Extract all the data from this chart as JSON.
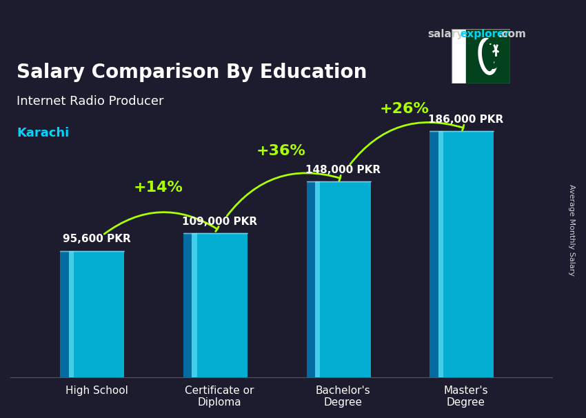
{
  "title": "Salary Comparison By Education",
  "subtitle": "Internet Radio Producer",
  "city": "Karachi",
  "ylabel": "Average Monthly Salary",
  "categories": [
    "High School",
    "Certificate or\nDiploma",
    "Bachelor's\nDegree",
    "Master's\nDegree"
  ],
  "values": [
    95600,
    109000,
    148000,
    186000
  ],
  "value_labels": [
    "95,600 PKR",
    "109,000 PKR",
    "148,000 PKR",
    "186,000 PKR"
  ],
  "pct_labels": [
    "+14%",
    "+36%",
    "+26%"
  ],
  "bar_color_top": "#00d4ff",
  "bar_color_mid": "#00aadd",
  "bar_color_bottom": "#007bb5",
  "bar_color_face": "#00c8f0",
  "title_color": "#ffffff",
  "subtitle_color": "#ffffff",
  "city_color": "#00d4ff",
  "value_label_color": "#ffffff",
  "pct_color": "#aaff00",
  "background_color": "#1a1a2e",
  "brand_color_salary": "#cccccc",
  "brand_color_explorer": "#00d4ff",
  "ylim": [
    0,
    220000
  ],
  "figsize": [
    8.5,
    6.06
  ],
  "dpi": 100
}
